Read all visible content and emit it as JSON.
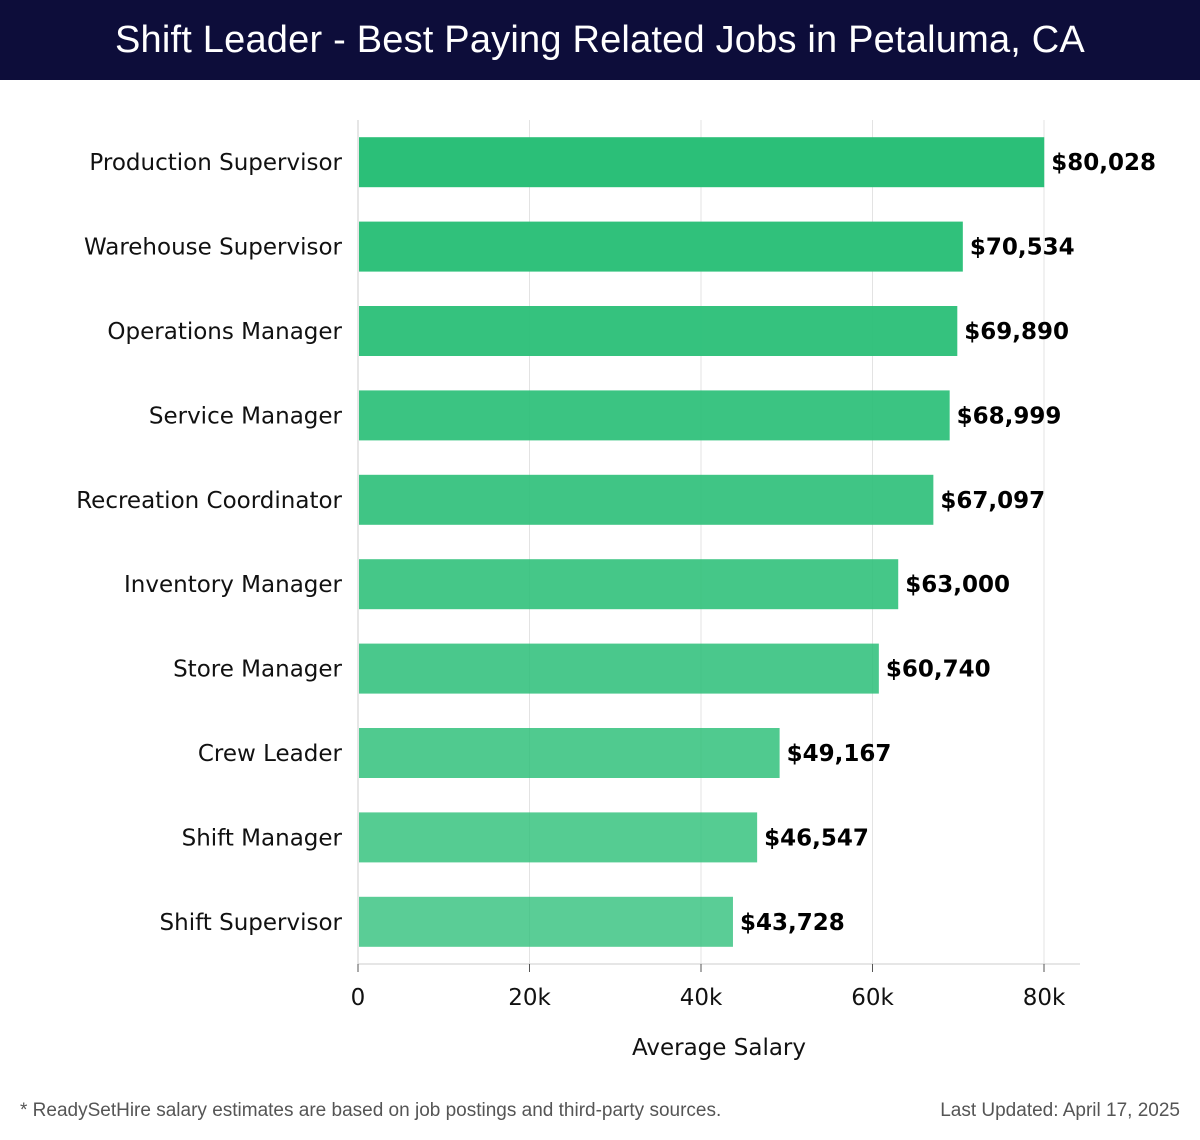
{
  "header": {
    "title": "Shift Leader - Best Paying Related Jobs in Petaluma, CA"
  },
  "chart_data": {
    "type": "bar",
    "orientation": "horizontal",
    "categories": [
      "Production Supervisor",
      "Warehouse Supervisor",
      "Operations Manager",
      "Service Manager",
      "Recreation Coordinator",
      "Inventory Manager",
      "Store Manager",
      "Crew Leader",
      "Shift Manager",
      "Shift Supervisor"
    ],
    "values": [
      80028,
      70534,
      69890,
      68999,
      67097,
      63000,
      60740,
      49167,
      46547,
      43728
    ],
    "data_labels": [
      "$80,028",
      "$70,534",
      "$69,890",
      "$68,999",
      "$67,097",
      "$63,000",
      "$60,740",
      "$49,167",
      "$46,547",
      "$43,728"
    ],
    "xlabel": "Average Salary",
    "xlim": [
      0,
      84000
    ],
    "xticks": [
      0,
      20000,
      40000,
      60000,
      80000
    ],
    "xtick_labels": [
      "0",
      "20k",
      "40k",
      "60k",
      "80k"
    ],
    "grid": true,
    "bar_color": "#2bbf78"
  },
  "footer": {
    "note": "* ReadySetHire salary estimates are based on job postings and third-party sources.",
    "updated": "Last Updated: April 17, 2025"
  }
}
